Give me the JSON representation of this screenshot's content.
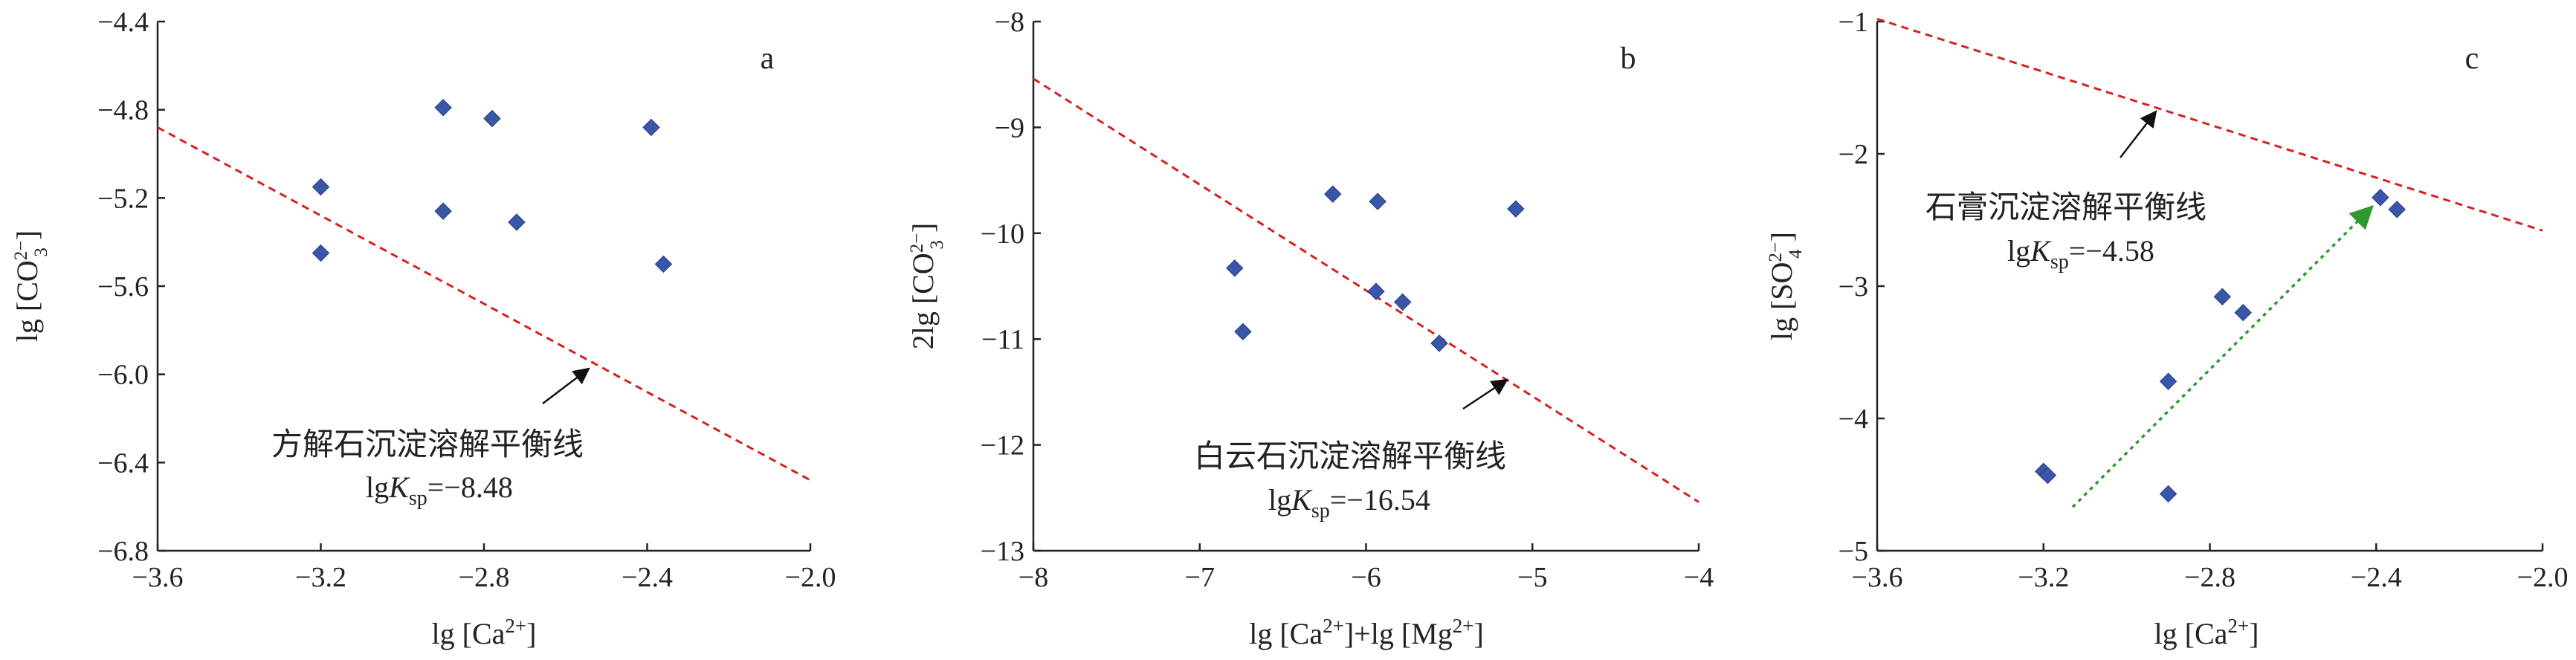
{
  "chart_data": [
    {
      "type": "scatter",
      "panel_label": "a",
      "xlabel": "lg [Ca2+]",
      "ylabel": "lg [CO32−]",
      "xlim": [
        -3.6,
        -2.0
      ],
      "ylim": [
        -6.8,
        -4.4
      ],
      "xticks": [
        -3.6,
        -3.2,
        -2.8,
        -2.4,
        -2.0
      ],
      "xtick_labels": [
        "−3.6",
        "−3.2",
        "−2.8",
        "−2.4",
        "−2.0"
      ],
      "yticks": [
        -6.8,
        -6.4,
        -6.0,
        -5.6,
        -5.2,
        -4.8,
        -4.4
      ],
      "ytick_labels": [
        "−6.8",
        "−6.4",
        "−6.0",
        "−5.6",
        "−5.2",
        "−4.8",
        "−4.4"
      ],
      "grid": false,
      "point_color": "#3a56a8",
      "line_color": "#d62020",
      "points": [
        {
          "x": -3.2,
          "y": -5.15
        },
        {
          "x": -3.2,
          "y": -5.45
        },
        {
          "x": -2.9,
          "y": -4.79
        },
        {
          "x": -2.9,
          "y": -5.26
        },
        {
          "x": -2.78,
          "y": -4.84
        },
        {
          "x": -2.72,
          "y": -5.31
        },
        {
          "x": -2.39,
          "y": -4.88
        },
        {
          "x": -2.36,
          "y": -5.5
        }
      ],
      "equilibrium_line": {
        "x": [
          -3.6,
          -2.0
        ],
        "y": [
          -4.88,
          -6.48
        ]
      },
      "annotation": {
        "title": "方解石沉淀溶解平衡线",
        "k_prefix": "lg",
        "k_symbol": "K",
        "k_sub": "sp",
        "k_value": "=−8.48"
      }
    },
    {
      "type": "scatter",
      "panel_label": "b",
      "xlabel": "lg [Ca2+]+lg [Mg2+]",
      "ylabel": "2lg [CO32−]",
      "xlim": [
        -8,
        -4
      ],
      "ylim": [
        -13,
        -8
      ],
      "xticks": [
        -8,
        -7,
        -6,
        -5,
        -4
      ],
      "xtick_labels": [
        "−8",
        "−7",
        "−6",
        "−5",
        "−4"
      ],
      "yticks": [
        -13,
        -12,
        -11,
        -10,
        -9,
        -8
      ],
      "ytick_labels": [
        "−13",
        "−12",
        "−11",
        "−10",
        "−9",
        "−8"
      ],
      "grid": false,
      "point_color": "#3a56a8",
      "line_color": "#d62020",
      "points": [
        {
          "x": -6.79,
          "y": -10.33
        },
        {
          "x": -6.74,
          "y": -10.93
        },
        {
          "x": -6.2,
          "y": -9.63
        },
        {
          "x": -5.93,
          "y": -9.7
        },
        {
          "x": -5.94,
          "y": -10.55
        },
        {
          "x": -5.78,
          "y": -10.65
        },
        {
          "x": -5.56,
          "y": -11.04
        },
        {
          "x": -5.1,
          "y": -9.77
        }
      ],
      "equilibrium_line": {
        "x": [
          -8,
          -4
        ],
        "y": [
          -8.54,
          -12.54
        ]
      },
      "annotation": {
        "title": "白云石沉淀溶解平衡线",
        "k_prefix": "lg",
        "k_symbol": "K",
        "k_sub": "sp",
        "k_value": "=−16.54"
      }
    },
    {
      "type": "scatter",
      "panel_label": "c",
      "xlabel": "lg [Ca2+]",
      "ylabel": "lg [SO42−]",
      "xlim": [
        -3.6,
        -2.0
      ],
      "ylim": [
        -5,
        -1
      ],
      "xticks": [
        -3.6,
        -3.2,
        -2.8,
        -2.4,
        -2.0
      ],
      "xtick_labels": [
        "−3.6",
        "−3.2",
        "−2.8",
        "−2.4",
        "−2.0"
      ],
      "yticks": [
        -5,
        -4,
        -3,
        -2,
        -1
      ],
      "ytick_labels": [
        "−5",
        "−4",
        "−3",
        "−2",
        "−1"
      ],
      "grid": false,
      "point_color": "#3a56a8",
      "line_color": "#d62020",
      "trend_color": "#2e9a2e",
      "points": [
        {
          "x": -3.2,
          "y": -4.4
        },
        {
          "x": -3.19,
          "y": -4.43
        },
        {
          "x": -2.9,
          "y": -3.72
        },
        {
          "x": -2.9,
          "y": -4.57
        },
        {
          "x": -2.77,
          "y": -3.08
        },
        {
          "x": -2.72,
          "y": -3.2
        },
        {
          "x": -2.39,
          "y": -2.33
        },
        {
          "x": -2.35,
          "y": -2.42
        }
      ],
      "equilibrium_line": {
        "x": [
          -3.6,
          -2.0
        ],
        "y": [
          -0.98,
          -2.58
        ]
      },
      "trend_arrow": {
        "x": [
          -3.13,
          -2.41
        ],
        "y": [
          -4.67,
          -2.4
        ]
      },
      "annotation": {
        "title": "石膏沉淀溶解平衡线",
        "k_prefix": "lg",
        "k_symbol": "K",
        "k_sub": "sp",
        "k_value": "=−4.58"
      }
    }
  ]
}
